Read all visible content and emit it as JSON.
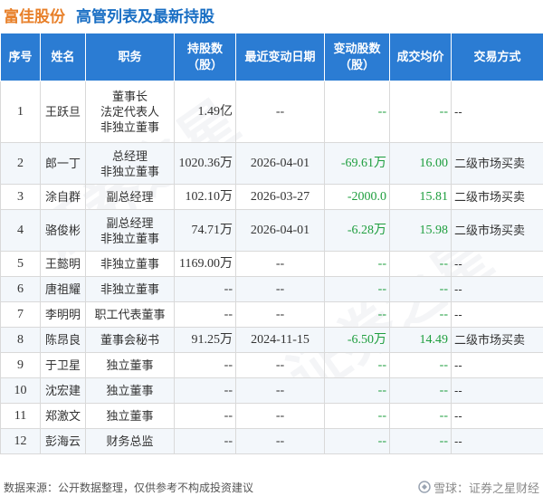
{
  "header": {
    "company": "富佳股份",
    "title": "高管列表及最新持股"
  },
  "table": {
    "columns": [
      "序号",
      "姓名",
      "职务",
      "持股数\n（股）",
      "最近变动日期",
      "变动股数\n（股）",
      "成交均价",
      "交易方式"
    ],
    "rows": [
      {
        "no": "1",
        "name": "王跃旦",
        "role": [
          "董事长",
          "法定代表人",
          "非独立董事"
        ],
        "shares": "1.49亿",
        "date": "--",
        "change": "--",
        "price": "--",
        "method": "--"
      },
      {
        "no": "2",
        "name": "郎一丁",
        "role": [
          "总经理",
          "非独立董事"
        ],
        "shares": "1020.36万",
        "date": "2026-04-01",
        "change": "-69.61万",
        "price": "16.00",
        "method": "二级市场买卖"
      },
      {
        "no": "3",
        "name": "涂自群",
        "role": [
          "副总经理"
        ],
        "shares": "102.10万",
        "date": "2026-03-27",
        "change": "-2000.0",
        "price": "15.81",
        "method": "二级市场买卖"
      },
      {
        "no": "4",
        "name": "骆俊彬",
        "role": [
          "副总经理",
          "非独立董事"
        ],
        "shares": "74.71万",
        "date": "2026-04-01",
        "change": "-6.28万",
        "price": "15.98",
        "method": "二级市场买卖"
      },
      {
        "no": "5",
        "name": "王懿明",
        "role": [
          "非独立董事"
        ],
        "shares": "1169.00万",
        "date": "--",
        "change": "--",
        "price": "--",
        "method": "--"
      },
      {
        "no": "6",
        "name": "唐祖耀",
        "role": [
          "非独立董事"
        ],
        "shares": "--",
        "date": "--",
        "change": "--",
        "price": "--",
        "method": "--"
      },
      {
        "no": "7",
        "name": "李明明",
        "role": [
          "职工代表董事"
        ],
        "shares": "--",
        "date": "--",
        "change": "--",
        "price": "--",
        "method": "--"
      },
      {
        "no": "8",
        "name": "陈昂良",
        "role": [
          "董事会秘书"
        ],
        "shares": "91.25万",
        "date": "2024-11-15",
        "change": "-6.50万",
        "price": "14.49",
        "method": "二级市场买卖"
      },
      {
        "no": "9",
        "name": "于卫星",
        "role": [
          "独立董事"
        ],
        "shares": "--",
        "date": "--",
        "change": "--",
        "price": "--",
        "method": "--"
      },
      {
        "no": "10",
        "name": "沈宏建",
        "role": [
          "独立董事"
        ],
        "shares": "--",
        "date": "--",
        "change": "--",
        "price": "--",
        "method": "--"
      },
      {
        "no": "11",
        "name": "郑激文",
        "role": [
          "独立董事"
        ],
        "shares": "--",
        "date": "--",
        "change": "--",
        "price": "--",
        "method": "--"
      },
      {
        "no": "12",
        "name": "彭海云",
        "role": [
          "财务总监"
        ],
        "shares": "--",
        "date": "--",
        "change": "--",
        "price": "--",
        "method": "--"
      }
    ]
  },
  "footer": {
    "source": "数据来源：公开数据整理，仅供参考不构成投资建议",
    "brand": "雪球：证券之星财经",
    "brand_icon": "snowball-icon"
  },
  "watermark": {
    "text": "证券之星"
  },
  "colors": {
    "header_bg": "#2b7cd3",
    "company": "#e8802a",
    "title": "#1a6fc4",
    "change": "#1e9e3e"
  }
}
